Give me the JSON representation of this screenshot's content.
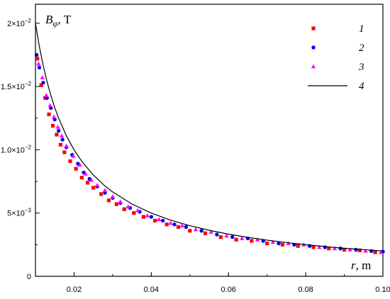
{
  "chart_data": {
    "type": "scatter",
    "title": "",
    "xlabel_var": "r",
    "xlabel_unit": ", m",
    "ylabel_var": "B",
    "ylabel_sub": "φ",
    "ylabel_unit": ", T",
    "xlim": [
      0.01,
      0.1
    ],
    "ylim": [
      0,
      0.0215
    ],
    "grid": false,
    "legend_position": "top-right",
    "x_ticks": [
      {
        "value": 0.02,
        "label": "0.02"
      },
      {
        "value": 0.04,
        "label": "0.04"
      },
      {
        "value": 0.06,
        "label": "0.06"
      },
      {
        "value": 0.08,
        "label": "0.08"
      },
      {
        "value": 0.1,
        "label": "0.10"
      }
    ],
    "y_ticks": [
      {
        "value": 0,
        "mant": "0",
        "exp": ""
      },
      {
        "value": 0.005,
        "mant": "5×10",
        "exp": "−3"
      },
      {
        "value": 0.01,
        "mant": "1.0×10",
        "exp": "−2"
      },
      {
        "value": 0.015,
        "mant": "1.5×10",
        "exp": "−2"
      },
      {
        "value": 0.02,
        "mant": "2×10",
        "exp": "−2"
      }
    ],
    "series": [
      {
        "name": "1",
        "marker": "square",
        "color": "#ff0000",
        "x": [
          0.0105,
          0.0115,
          0.0125,
          0.0135,
          0.0145,
          0.0155,
          0.0165,
          0.0175,
          0.019,
          0.0205,
          0.022,
          0.0235,
          0.025,
          0.027,
          0.029,
          0.031,
          0.033,
          0.0355,
          0.038,
          0.041,
          0.044,
          0.047,
          0.05,
          0.054,
          0.058,
          0.062,
          0.066,
          0.07,
          0.074,
          0.078,
          0.082,
          0.086,
          0.09,
          0.094,
          0.098
        ],
        "y": [
          0.0172,
          0.0151,
          0.0141,
          0.0128,
          0.0119,
          0.0112,
          0.0104,
          0.0098,
          0.0091,
          0.0085,
          0.0078,
          0.0074,
          0.007,
          0.0065,
          0.006,
          0.0057,
          0.0053,
          0.005,
          0.0047,
          0.0044,
          0.0041,
          0.0039,
          0.0036,
          0.0034,
          0.0031,
          0.0029,
          0.0028,
          0.0026,
          0.0025,
          0.0024,
          0.0023,
          0.0022,
          0.0021,
          0.00205,
          0.0019
        ]
      },
      {
        "name": "2",
        "marker": "circle",
        "color": "#0000ff",
        "x": [
          0.0103,
          0.011,
          0.012,
          0.013,
          0.014,
          0.015,
          0.016,
          0.017,
          0.018,
          0.0195,
          0.021,
          0.0225,
          0.024,
          0.026,
          0.028,
          0.03,
          0.032,
          0.0345,
          0.037,
          0.04,
          0.043,
          0.046,
          0.049,
          0.053,
          0.057,
          0.061,
          0.065,
          0.069,
          0.073,
          0.077,
          0.081,
          0.085,
          0.089,
          0.093,
          0.097,
          0.1
        ],
        "y": [
          0.0175,
          0.0165,
          0.0153,
          0.0141,
          0.0133,
          0.0124,
          0.0115,
          0.0108,
          0.0102,
          0.0096,
          0.0089,
          0.0082,
          0.0077,
          0.0071,
          0.0066,
          0.0062,
          0.0058,
          0.0054,
          0.0051,
          0.0047,
          0.0044,
          0.0041,
          0.0039,
          0.0036,
          0.0033,
          0.0031,
          0.003,
          0.0028,
          0.0026,
          0.0025,
          0.0024,
          0.0023,
          0.0022,
          0.0021,
          0.002,
          0.00195
        ]
      },
      {
        "name": "3",
        "marker": "triangle",
        "color": "#ff00ff",
        "x": [
          0.0108,
          0.0118,
          0.0128,
          0.0138,
          0.0148,
          0.0158,
          0.0168,
          0.018,
          0.0198,
          0.0215,
          0.023,
          0.0245,
          0.026,
          0.028,
          0.03,
          0.032,
          0.034,
          0.0365,
          0.039,
          0.042,
          0.045,
          0.048,
          0.0515,
          0.0555,
          0.0595,
          0.0635,
          0.0675,
          0.0715,
          0.0755,
          0.0795,
          0.0835,
          0.0875,
          0.0915,
          0.0955,
          0.0995
        ],
        "y": [
          0.0168,
          0.0157,
          0.0143,
          0.0135,
          0.0126,
          0.0118,
          0.0111,
          0.0103,
          0.0095,
          0.0088,
          0.0081,
          0.0076,
          0.0072,
          0.0068,
          0.0063,
          0.0059,
          0.0055,
          0.0052,
          0.0048,
          0.0045,
          0.0042,
          0.004,
          0.0037,
          0.0035,
          0.0032,
          0.003,
          0.0029,
          0.0027,
          0.0026,
          0.0025,
          0.0023,
          0.0022,
          0.0021,
          0.002,
          0.0019
        ]
      },
      {
        "name": "4",
        "marker": "line",
        "color": "#000000",
        "x": [
          0.01,
          0.011,
          0.012,
          0.013,
          0.014,
          0.015,
          0.016,
          0.018,
          0.02,
          0.022,
          0.025,
          0.028,
          0.03,
          0.035,
          0.04,
          0.045,
          0.05,
          0.055,
          0.06,
          0.065,
          0.07,
          0.075,
          0.08,
          0.085,
          0.09,
          0.095,
          0.1
        ],
        "y": [
          0.02,
          0.01818,
          0.01667,
          0.01538,
          0.01429,
          0.01333,
          0.0125,
          0.01111,
          0.01,
          0.00909,
          0.008,
          0.00714,
          0.00667,
          0.00571,
          0.005,
          0.00444,
          0.004,
          0.00364,
          0.00333,
          0.00308,
          0.00286,
          0.00267,
          0.0025,
          0.00235,
          0.00222,
          0.00211,
          0.002
        ]
      }
    ]
  }
}
